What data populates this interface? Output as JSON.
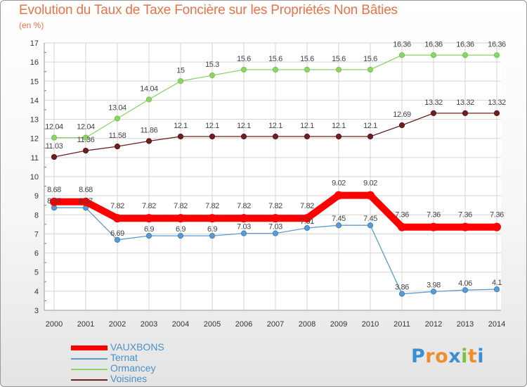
{
  "title": "Evolution du Taux de Taxe Foncière sur les Propriétés Non Bâties",
  "unit": "(en %)",
  "logo": {
    "text": "Proxiti",
    "letters": [
      "P",
      "r",
      "o",
      "x",
      "i",
      "t",
      "i"
    ],
    "colors": [
      "#3a8fd0",
      "#f08c2c",
      "#f08c2c",
      "#3a8fd0",
      "#7cc242",
      "#f08c2c",
      "#3a8fd0"
    ]
  },
  "chart_data": {
    "type": "line",
    "title": "Evolution du Taux de Taxe Foncière sur les Propriétés Non Bâties",
    "ylabel": "(en %)",
    "xlabel": "",
    "ylim": [
      3,
      17
    ],
    "yticks": [
      "3",
      "4",
      "5",
      "6",
      "7",
      "8",
      "9",
      "10",
      "11",
      "12",
      "13",
      "14",
      "15",
      "16",
      "17"
    ],
    "x": [
      "2000",
      "2001",
      "2002",
      "2003",
      "2004",
      "2005",
      "2006",
      "2007",
      "2008",
      "2009",
      "2010",
      "2011",
      "2012",
      "2013",
      "2014"
    ],
    "series": [
      {
        "name": "VAUXBONS",
        "color": "#ff0000",
        "thick": true,
        "values": [
          8.68,
          8.68,
          7.82,
          7.82,
          7.82,
          7.82,
          7.82,
          7.82,
          7.82,
          9.02,
          9.02,
          7.36,
          7.36,
          7.36,
          7.36
        ],
        "labels": [
          "8.68",
          "8.68",
          "7.82",
          "7.82",
          "7.82",
          "7.82",
          "7.82",
          "7.82",
          "7.82",
          "9.02",
          "9.02",
          "7.36",
          "7.36",
          "7.36",
          "7.36"
        ]
      },
      {
        "name": "Ternat",
        "color": "#5b9bd0",
        "dot": "#3f7fbf",
        "values": [
          8.37,
          8.37,
          6.69,
          6.9,
          6.9,
          6.9,
          7.03,
          7.03,
          7.31,
          7.45,
          7.45,
          3.86,
          3.98,
          4.06,
          4.1
        ],
        "labels": [
          "8.37",
          "8.37",
          "6.69",
          "6.9",
          "6.9",
          "6.9",
          "7.03",
          "7.03",
          "7.31",
          "7.45",
          "7.45",
          "3.86",
          "3.98",
          "4.06",
          "4.1"
        ]
      },
      {
        "name": "Ormancey",
        "color": "#8ed36a",
        "dot": "#76c24e",
        "values": [
          12.04,
          12.04,
          13.04,
          14.04,
          15,
          15.3,
          15.6,
          15.6,
          15.6,
          15.6,
          15.6,
          16.36,
          16.36,
          16.36,
          16.36
        ],
        "labels": [
          "12.04",
          "12.04",
          "13.04",
          "14.04",
          "15",
          "15.3",
          "15.6",
          "15.6",
          "15.6",
          "15.6",
          "15.6",
          "16.36",
          "16.36",
          "16.36",
          "16.36"
        ]
      },
      {
        "name": "Voisines",
        "color": "#6e1f1f",
        "dot": "#5a1414",
        "values": [
          11.03,
          11.36,
          11.58,
          11.86,
          12.1,
          12.1,
          12.1,
          12.1,
          12.1,
          12.1,
          12.1,
          12.69,
          13.32,
          13.32,
          13.32
        ],
        "labels": [
          "11.03",
          "11.36",
          "11.58",
          "11.86",
          "12.1",
          "12.1",
          "12.1",
          "12.1",
          "12.1",
          "12.1",
          "12.1",
          "12.69",
          "13.32",
          "13.32",
          "13.32"
        ]
      }
    ],
    "grid": true,
    "legend": "bottom-left"
  }
}
